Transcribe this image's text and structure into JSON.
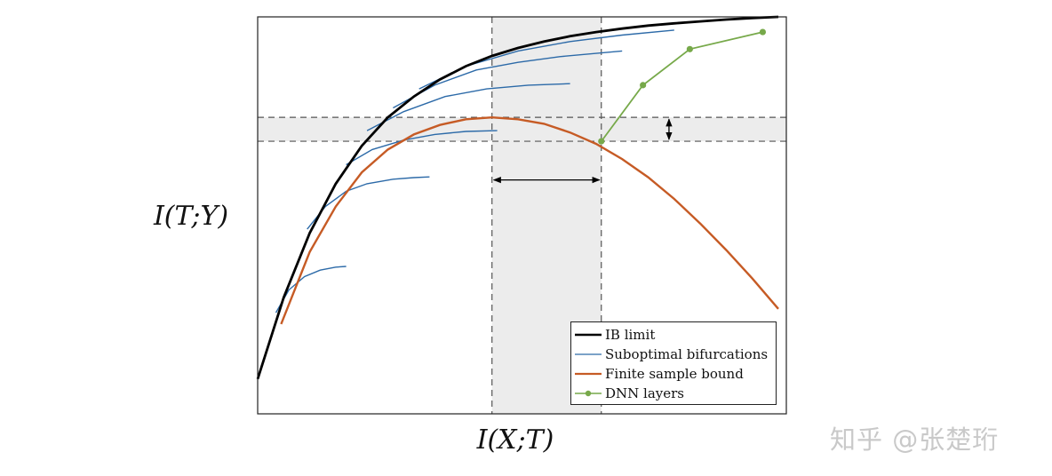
{
  "chart_data": {
    "type": "line",
    "xlabel": "I(X;T)",
    "ylabel": "I(T;Y)",
    "xlim": [
      0,
      1
    ],
    "ylim": [
      0,
      1
    ],
    "grid": false,
    "legend_position": "bottom-right",
    "series": [
      {
        "name": "IB limit",
        "color": "#000000",
        "style": "thick",
        "x": [
          0,
          0.05,
          0.1,
          0.15,
          0.2,
          0.25,
          0.3,
          0.35,
          0.4,
          0.45,
          0.5,
          0.55,
          0.6,
          0.65,
          0.7,
          0.75,
          0.8,
          0.85,
          0.9,
          0.95,
          1.0
        ],
        "y": [
          0.045,
          0.26,
          0.43,
          0.56,
          0.66,
          0.735,
          0.79,
          0.835,
          0.87,
          0.897,
          0.918,
          0.935,
          0.949,
          0.96,
          0.969,
          0.977,
          0.983,
          0.988,
          0.993,
          0.997,
          1.0
        ]
      },
      {
        "name": "Suboptimal bifurcations",
        "color": "#2c6aa8",
        "style": "thin",
        "branches": [
          {
            "x": [
              0.035,
              0.06,
              0.09,
              0.12,
              0.15,
              0.17
            ],
            "y": [
              0.22,
              0.28,
              0.315,
              0.332,
              0.34,
              0.342
            ]
          },
          {
            "x": [
              0.095,
              0.13,
              0.17,
              0.21,
              0.26,
              0.3,
              0.33
            ],
            "y": [
              0.44,
              0.5,
              0.54,
              0.56,
              0.572,
              0.576,
              0.578
            ]
          },
          {
            "x": [
              0.17,
              0.22,
              0.28,
              0.34,
              0.4,
              0.46
            ],
            "y": [
              0.61,
              0.65,
              0.675,
              0.69,
              0.698,
              0.7
            ]
          },
          {
            "x": [
              0.21,
              0.28,
              0.36,
              0.44,
              0.52,
              0.6
            ],
            "y": [
              0.7,
              0.75,
              0.79,
              0.81,
              0.82,
              0.824
            ]
          },
          {
            "x": [
              0.26,
              0.34,
              0.42,
              0.5,
              0.58,
              0.7
            ],
            "y": [
              0.76,
              0.82,
              0.86,
              0.88,
              0.895,
              0.91
            ]
          },
          {
            "x": [
              0.31,
              0.4,
              0.5,
              0.6,
              0.7,
              0.8
            ],
            "y": [
              0.81,
              0.87,
              0.91,
              0.935,
              0.952,
              0.965
            ]
          }
        ]
      },
      {
        "name": "Finite sample bound",
        "color": "#c65b25",
        "style": "medium",
        "x": [
          0.045,
          0.1,
          0.15,
          0.2,
          0.25,
          0.3,
          0.35,
          0.4,
          0.45,
          0.5,
          0.55,
          0.6,
          0.65,
          0.7,
          0.75,
          0.8,
          0.85,
          0.9,
          0.95,
          1.0
        ],
        "y": [
          0.19,
          0.38,
          0.5,
          0.59,
          0.65,
          0.69,
          0.715,
          0.73,
          0.735,
          0.73,
          0.718,
          0.695,
          0.665,
          0.625,
          0.577,
          0.52,
          0.455,
          0.385,
          0.31,
          0.23
        ]
      },
      {
        "name": "DNN layers",
        "color": "#77a94a",
        "style": "markers",
        "x": [
          0.66,
          0.74,
          0.83,
          0.97
        ],
        "y": [
          0.672,
          0.82,
          0.915,
          0.96
        ]
      }
    ],
    "annotations": {
      "shaded_vertical_band": {
        "x": [
          0.45,
          0.66
        ]
      },
      "shaded_horizontal_band": {
        "y": [
          0.672,
          0.735
        ]
      },
      "horizontal_arrow": {
        "x": [
          0.45,
          0.66
        ],
        "y": 0.57
      },
      "vertical_arrow": {
        "x": 0.79,
        "y": [
          0.672,
          0.735
        ]
      }
    }
  },
  "watermark": "知乎 @张楚珩"
}
